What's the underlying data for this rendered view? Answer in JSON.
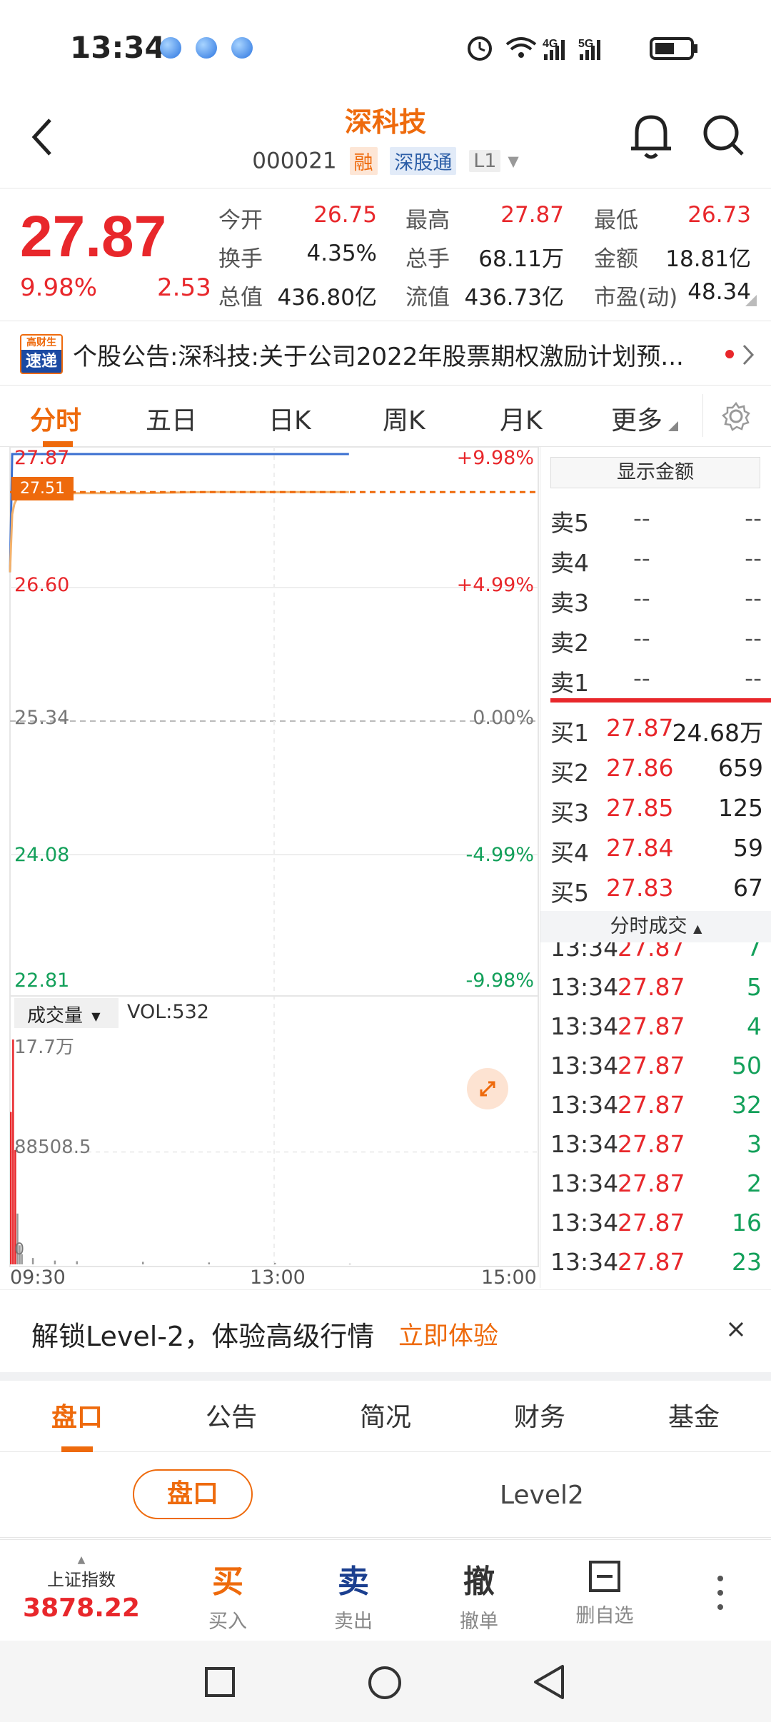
{
  "status_bar": {
    "time": "13:34"
  },
  "header": {
    "title": "深科技",
    "code": "000021",
    "tags": [
      "融",
      "深股通",
      "L1"
    ]
  },
  "quote": {
    "price": "27.87",
    "change_pct": "9.98%",
    "change": "2.53",
    "fields": [
      {
        "label": "今开",
        "value": "26.75",
        "color": "red"
      },
      {
        "label": "最高",
        "value": "27.87",
        "color": "red"
      },
      {
        "label": "最低",
        "value": "26.73",
        "color": "red"
      },
      {
        "label": "换手",
        "value": "4.35%",
        "color": "dark"
      },
      {
        "label": "总手",
        "value": "68.11万",
        "color": "dark"
      },
      {
        "label": "金额",
        "value": "18.81亿",
        "color": "dark"
      },
      {
        "label": "总值",
        "value": "436.80亿",
        "color": "dark"
      },
      {
        "label": "流值",
        "value": "436.73亿",
        "color": "dark"
      },
      {
        "label": "市盈(动)",
        "value": "48.34",
        "color": "dark"
      }
    ]
  },
  "news": {
    "badge_top": "高财生",
    "badge_bottom": "速递",
    "text": "个股公告:深科技:关于公司2022年股票期权激励计划预..."
  },
  "chart_tabs": [
    "分时",
    "五日",
    "日K",
    "周K",
    "月K",
    "更多"
  ],
  "chart": {
    "left_labels": [
      "27.87",
      "26.60",
      "25.34",
      "24.08",
      "22.81"
    ],
    "right_labels": [
      "+9.98%",
      "+4.99%",
      "0.00%",
      "-4.99%",
      "-9.98%"
    ],
    "current_marker": "27.51",
    "vol_selector": "成交量",
    "vol_text": "VOL:532",
    "vol_max": "17.7万",
    "vol_mid": "88508.5",
    "vol_min": "0",
    "time_axis": [
      "09:30",
      "13:00",
      "15:00"
    ]
  },
  "chart_data": {
    "type": "line",
    "title": "",
    "xlabel": "",
    "ylabel": "",
    "x": [
      "09:30",
      "09:31",
      "09:32",
      "09:33",
      "09:34",
      "09:35",
      "09:40",
      "09:50",
      "10:00",
      "10:30",
      "11:00",
      "11:30",
      "13:00",
      "13:34"
    ],
    "ylim": [
      22.81,
      27.87
    ],
    "series": [
      {
        "values": [
          26.75,
          27.87,
          27.87,
          27.87,
          27.87,
          27.87,
          27.87,
          27.87,
          27.87,
          27.87,
          27.87,
          27.87,
          27.87,
          27.87
        ]
      },
      {
        "values": [
          26.75,
          27.3,
          27.4,
          27.44,
          27.46,
          27.47,
          27.48,
          27.49,
          27.5,
          27.5,
          27.51,
          27.51,
          27.51,
          27.51
        ]
      }
    ],
    "volume": {
      "ylim": [
        0,
        177000
      ],
      "values": [
        120000,
        177000,
        90000,
        40000,
        15000,
        8000,
        5000,
        3000,
        2500,
        2000,
        1500,
        1200,
        1000,
        532
      ]
    }
  },
  "orderbook": {
    "show_amount_label": "显示金额",
    "sells": [
      {
        "label": "卖5",
        "price": "--",
        "vol": "--"
      },
      {
        "label": "卖4",
        "price": "--",
        "vol": "--"
      },
      {
        "label": "卖3",
        "price": "--",
        "vol": "--"
      },
      {
        "label": "卖2",
        "price": "--",
        "vol": "--"
      },
      {
        "label": "卖1",
        "price": "--",
        "vol": "--"
      }
    ],
    "buys": [
      {
        "label": "买1",
        "price": "27.87",
        "vol": "24.68万"
      },
      {
        "label": "买2",
        "price": "27.86",
        "vol": "659"
      },
      {
        "label": "买3",
        "price": "27.85",
        "vol": "125"
      },
      {
        "label": "买4",
        "price": "27.84",
        "vol": "59"
      },
      {
        "label": "买5",
        "price": "27.83",
        "vol": "67"
      }
    ],
    "ticks_header": "分时成交",
    "ticks": [
      {
        "time": "13:34",
        "price": "27.87",
        "vol": "7"
      },
      {
        "time": "13:34",
        "price": "27.87",
        "vol": "5"
      },
      {
        "time": "13:34",
        "price": "27.87",
        "vol": "4"
      },
      {
        "time": "13:34",
        "price": "27.87",
        "vol": "50"
      },
      {
        "time": "13:34",
        "price": "27.87",
        "vol": "32"
      },
      {
        "time": "13:34",
        "price": "27.87",
        "vol": "3"
      },
      {
        "time": "13:34",
        "price": "27.87",
        "vol": "2"
      },
      {
        "time": "13:34",
        "price": "27.87",
        "vol": "16"
      },
      {
        "time": "13:34",
        "price": "27.87",
        "vol": "23"
      }
    ]
  },
  "banner": {
    "text": "解锁Level-2，体验高级行情",
    "cta": "立即体验"
  },
  "bottom_tabs": [
    "盘口",
    "公告",
    "简况",
    "财务",
    "基金"
  ],
  "sub_tabs": [
    "盘口",
    "Level2"
  ],
  "action_bar": {
    "index_name": "上证指数",
    "index_value": "3878.22",
    "buy": {
      "big": "买",
      "small": "买入"
    },
    "sell": {
      "big": "卖",
      "small": "卖出"
    },
    "cancel": {
      "big": "撤",
      "small": "撤单"
    },
    "remove": {
      "small": "删自选"
    }
  }
}
